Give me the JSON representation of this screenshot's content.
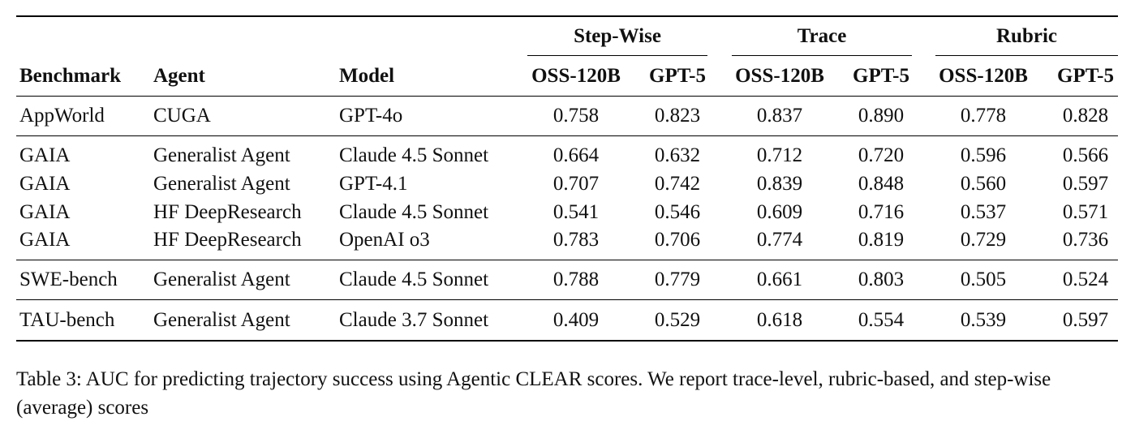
{
  "table": {
    "group_headers": [
      "Step-Wise",
      "Trace",
      "Rubric"
    ],
    "columns": [
      "Benchmark",
      "Agent",
      "Model",
      "OSS-120B",
      "GPT-5",
      "OSS-120B",
      "GPT-5",
      "OSS-120B",
      "GPT-5"
    ],
    "rows": [
      [
        "AppWorld",
        "CUGA",
        "GPT-4o",
        "0.758",
        "0.823",
        "0.837",
        "0.890",
        "0.778",
        "0.828"
      ],
      [
        "GAIA",
        "Generalist Agent",
        "Claude 4.5 Sonnet",
        "0.664",
        "0.632",
        "0.712",
        "0.720",
        "0.596",
        "0.566"
      ],
      [
        "GAIA",
        "Generalist Agent",
        "GPT-4.1",
        "0.707",
        "0.742",
        "0.839",
        "0.848",
        "0.560",
        "0.597"
      ],
      [
        "GAIA",
        "HF DeepResearch",
        "Claude 4.5 Sonnet",
        "0.541",
        "0.546",
        "0.609",
        "0.716",
        "0.537",
        "0.571"
      ],
      [
        "GAIA",
        "HF DeepResearch",
        "OpenAI o3",
        "0.783",
        "0.706",
        "0.774",
        "0.819",
        "0.729",
        "0.736"
      ],
      [
        "SWE-bench",
        "Generalist Agent",
        "Claude 4.5 Sonnet",
        "0.788",
        "0.779",
        "0.661",
        "0.803",
        "0.505",
        "0.524"
      ],
      [
        "TAU-bench",
        "Generalist Agent",
        "Claude 3.7 Sonnet",
        "0.409",
        "0.529",
        "0.618",
        "0.554",
        "0.539",
        "0.597"
      ]
    ]
  },
  "caption": "Table 3: AUC for predicting trajectory success using Agentic CLEAR scores. We report trace-level, rubric-based, and step-wise (average) scores"
}
